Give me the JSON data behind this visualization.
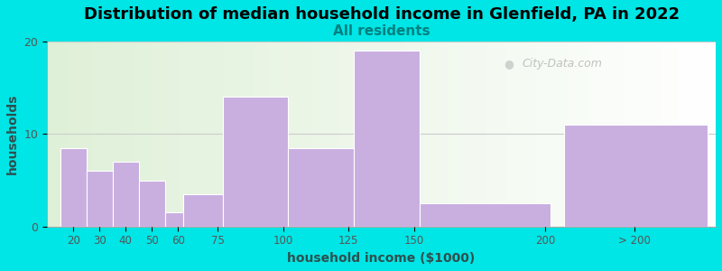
{
  "title": "Distribution of median household income in Glenfield, PA in 2022",
  "subtitle": "All residents",
  "xlabel": "household income ($1000)",
  "ylabel": "households",
  "title_fontsize": 13,
  "subtitle_fontsize": 11,
  "bar_labels": [
    "20",
    "30",
    "40",
    "50",
    "60",
    "75",
    "100",
    "125",
    "150",
    "200",
    "> 200"
  ],
  "bar_values": [
    8.5,
    6.0,
    7.0,
    5.0,
    1.5,
    3.5,
    14.0,
    8.5,
    19.0,
    2.5,
    11.0
  ],
  "bar_lefts": [
    15,
    25,
    35,
    45,
    55,
    62,
    77,
    102,
    127,
    152,
    207
  ],
  "bar_widths": [
    10,
    10,
    10,
    10,
    7,
    15,
    25,
    25,
    25,
    50,
    55
  ],
  "bar_color": "#c9aee0",
  "bar_edge_color": "#c9aee0",
  "background_color": "#00e5e5",
  "plot_bg_left": "#dff0d8",
  "plot_bg_right": "#ffffff",
  "ylim": [
    0,
    20
  ],
  "yticks": [
    0,
    10,
    20
  ],
  "xlim": [
    10,
    265
  ],
  "watermark": "City-Data.com",
  "title_color": "#000000",
  "subtitle_color": "#008080",
  "axis_label_color": "#2f4f4f",
  "tick_color": "#555555",
  "grid_color": "#cccccc"
}
